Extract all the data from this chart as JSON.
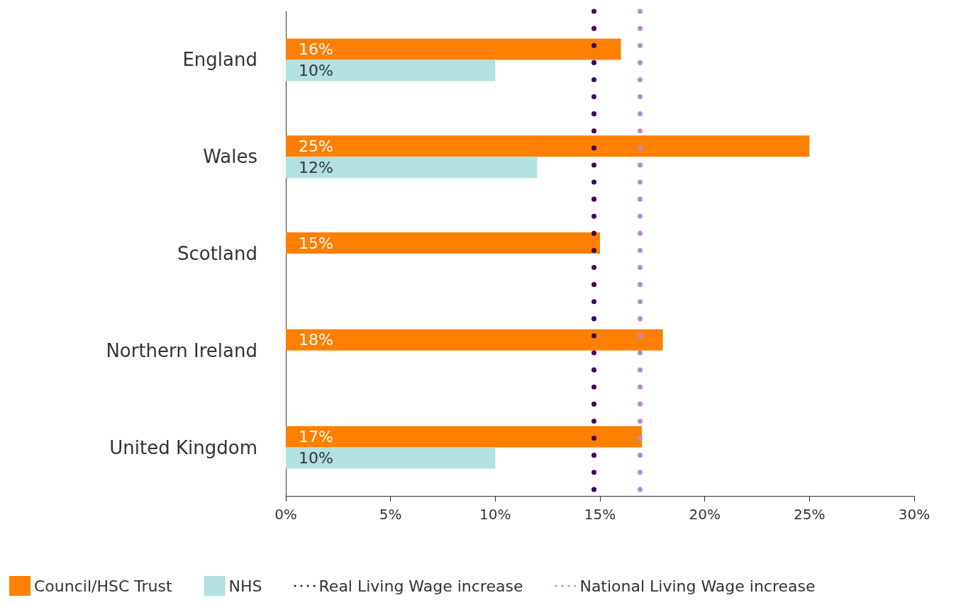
{
  "chart_data": {
    "type": "bar",
    "orientation": "horizontal",
    "categories": [
      "England",
      "Wales",
      "Scotland",
      "Northern Ireland",
      "United Kingdom"
    ],
    "series": [
      {
        "name": "Council/HSC Trust",
        "color": "#ff7f00",
        "values": [
          16,
          25,
          15,
          18,
          17
        ],
        "value_labels": [
          "16%",
          "25%",
          "15%",
          "18%",
          "17%"
        ]
      },
      {
        "name": "NHS",
        "color": "#b3e0e0",
        "values": [
          10,
          12,
          null,
          null,
          10
        ],
        "value_labels": [
          "10%",
          "12%",
          null,
          null,
          "10%"
        ]
      }
    ],
    "xlim": [
      0,
      30
    ],
    "xticks": [
      {
        "value": 0,
        "label": "0%"
      },
      {
        "value": 5,
        "label": "5%"
      },
      {
        "value": 10,
        "label": "10%"
      },
      {
        "value": 15,
        "label": "15%"
      },
      {
        "value": 20,
        "label": "20%"
      },
      {
        "value": 25,
        "label": "25%"
      },
      {
        "value": 30,
        "label": "30%"
      }
    ],
    "ref_lines": [
      {
        "axis": "x",
        "value": 14.7,
        "label": "Real Living Wage increase",
        "color": "#3d0a5c",
        "line_style": "dotted"
      },
      {
        "axis": "x",
        "value": 16.9,
        "label": "National Living Wage increase",
        "color": "#b889d6",
        "line_style": "dotted"
      }
    ],
    "grid": false,
    "legend": "bottom"
  }
}
